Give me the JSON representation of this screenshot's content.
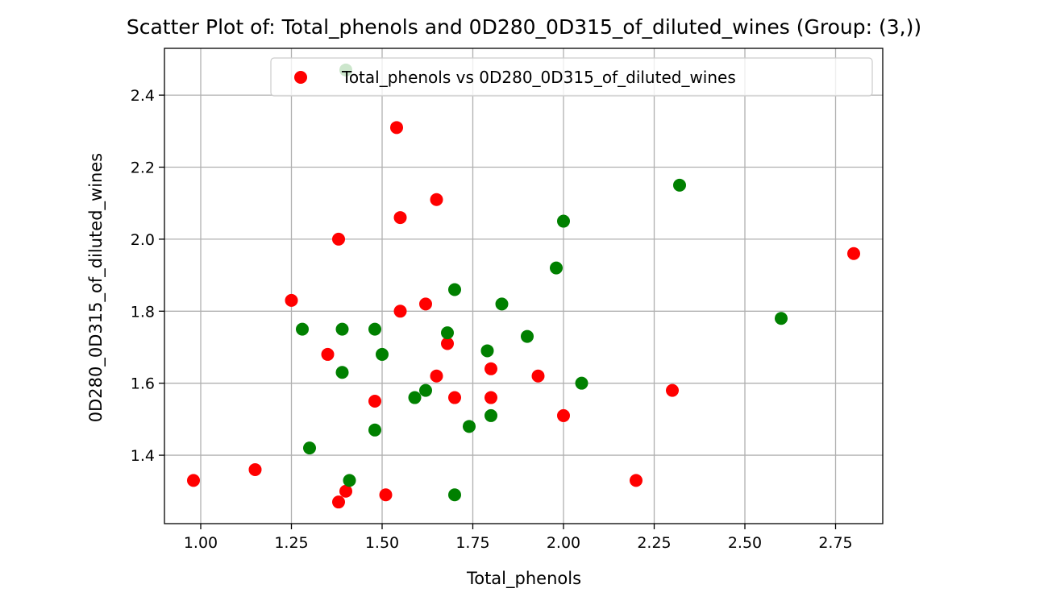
{
  "chart_data": {
    "type": "scatter",
    "title": "Scatter Plot of: Total_phenols and 0D280_0D315_of_diluted_wines (Group: (3,))",
    "xlabel": "Total_phenols",
    "ylabel": "0D280_0D315_of_diluted_wines",
    "xlim": [
      0.9,
      2.88
    ],
    "ylim": [
      1.21,
      2.53
    ],
    "x_ticks": [
      "1.00",
      "1.25",
      "1.50",
      "1.75",
      "2.00",
      "2.25",
      "2.50",
      "2.75"
    ],
    "y_ticks": [
      "1.4",
      "1.6",
      "1.8",
      "2.0",
      "2.2",
      "2.4"
    ],
    "grid": true,
    "legend_position": "upper right",
    "legend": [
      {
        "label": "Total_phenols vs 0D280_0D315_of_diluted_wines",
        "color": "#ff0000"
      }
    ],
    "series": [
      {
        "name": "Total_phenols vs 0D280_0D315_of_diluted_wines",
        "color": "#ff0000",
        "points": [
          [
            0.98,
            1.33
          ],
          [
            1.15,
            1.36
          ],
          [
            1.25,
            1.83
          ],
          [
            1.35,
            1.68
          ],
          [
            1.38,
            2.0
          ],
          [
            1.38,
            1.27
          ],
          [
            1.4,
            1.3
          ],
          [
            1.48,
            1.55
          ],
          [
            1.51,
            1.29
          ],
          [
            1.54,
            2.31
          ],
          [
            1.55,
            2.06
          ],
          [
            1.55,
            1.8
          ],
          [
            1.62,
            1.82
          ],
          [
            1.65,
            2.11
          ],
          [
            1.65,
            1.62
          ],
          [
            1.68,
            1.71
          ],
          [
            1.7,
            1.56
          ],
          [
            1.8,
            1.64
          ],
          [
            1.8,
            1.56
          ],
          [
            1.93,
            1.62
          ],
          [
            2.0,
            1.51
          ],
          [
            2.2,
            1.33
          ],
          [
            2.3,
            1.58
          ],
          [
            2.8,
            1.96
          ]
        ]
      },
      {
        "name": "",
        "color": "#008000",
        "points": [
          [
            1.28,
            1.75
          ],
          [
            1.3,
            1.42
          ],
          [
            1.39,
            1.75
          ],
          [
            1.39,
            1.63
          ],
          [
            1.4,
            2.47
          ],
          [
            1.41,
            1.33
          ],
          [
            1.48,
            1.75
          ],
          [
            1.48,
            1.47
          ],
          [
            1.5,
            1.68
          ],
          [
            1.59,
            1.56
          ],
          [
            1.62,
            1.58
          ],
          [
            1.68,
            1.74
          ],
          [
            1.7,
            1.86
          ],
          [
            1.7,
            1.29
          ],
          [
            1.74,
            1.48
          ],
          [
            1.79,
            1.69
          ],
          [
            1.8,
            1.51
          ],
          [
            1.83,
            1.82
          ],
          [
            1.9,
            1.73
          ],
          [
            1.98,
            1.92
          ],
          [
            2.0,
            2.05
          ],
          [
            2.05,
            1.6
          ],
          [
            2.32,
            2.15
          ],
          [
            2.6,
            1.78
          ]
        ]
      }
    ]
  }
}
